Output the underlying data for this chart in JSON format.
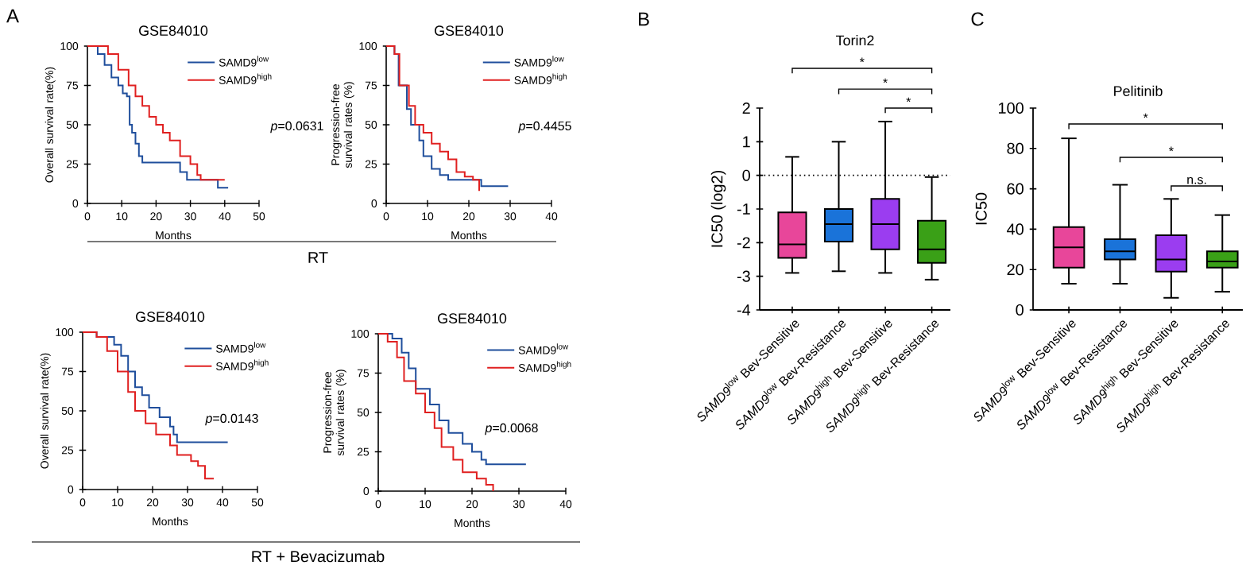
{
  "chart_data": [
    {
      "type": "step",
      "title": "GSE84010",
      "xlabel": "Months",
      "ylabel": "Overall survival rate(%)",
      "xlim": [
        0,
        50
      ],
      "xticks": [
        0,
        10,
        20,
        30,
        40,
        50
      ],
      "ylim": [
        0,
        100
      ],
      "yticks": [
        0,
        25,
        50,
        75,
        100
      ],
      "legend": "top right",
      "annotations": [
        "A",
        "*p*=0.0631",
        "RT"
      ],
      "series": [
        {
          "name": "SAMD9$^{low}$",
          "color": "#1f4e9c",
          "x": [
            0,
            2,
            3,
            5,
            7,
            9,
            10.3,
            11.5,
            12.3,
            13,
            14,
            15,
            16,
            25.4,
            27,
            29,
            38,
            41
          ],
          "values": [
            100,
            100,
            95,
            88,
            80,
            75,
            70,
            68,
            50,
            45,
            38,
            30,
            26,
            26,
            20,
            15,
            10,
            10
          ]
        },
        {
          "name": "SAMD9$^{high}$",
          "color": "#e02020",
          "x": [
            0,
            2,
            6,
            9,
            12,
            14,
            16,
            18,
            20,
            22,
            24,
            27,
            30,
            32,
            33,
            40
          ],
          "values": [
            100,
            100,
            95,
            85,
            75,
            68,
            62,
            55,
            50,
            45,
            40,
            30,
            25,
            18,
            15,
            15
          ]
        }
      ]
    },
    {
      "type": "step",
      "title": "GSE84010",
      "xlabel": "Months",
      "ylabel": "Progression-free survival rates (%)",
      "xlim": [
        0,
        40
      ],
      "xticks": [
        0,
        10,
        20,
        30,
        40
      ],
      "ylim": [
        0,
        100
      ],
      "yticks": [
        0,
        25,
        50,
        75,
        100
      ],
      "legend": "top right",
      "annotations": [
        "*p*=0.4455"
      ],
      "series": [
        {
          "name": "SAMD9$^{low}$",
          "color": "#1f4e9c",
          "x": [
            0,
            2,
            3,
            5,
            6,
            8,
            9,
            11,
            13,
            15,
            23,
            29.5
          ],
          "values": [
            100,
            95,
            75,
            60,
            50,
            40,
            30,
            22,
            18,
            15,
            11,
            11
          ]
        },
        {
          "name": "SAMD9$^{high}$",
          "color": "#e02020",
          "x": [
            0,
            2,
            3.2,
            5.5,
            7,
            9,
            11,
            13,
            15,
            17,
            19,
            21,
            22.5
          ],
          "values": [
            100,
            95,
            75,
            62,
            50,
            45,
            38,
            33,
            28,
            20,
            17,
            15,
            8
          ]
        }
      ]
    },
    {
      "type": "step",
      "title": "GSE84010",
      "xlabel": "Months",
      "ylabel": "Overall survival rate(%)",
      "xlim": [
        0,
        50
      ],
      "xticks": [
        0,
        10,
        20,
        30,
        40,
        50
      ],
      "ylim": [
        0,
        100
      ],
      "yticks": [
        0,
        25,
        50,
        75,
        100
      ],
      "legend": "top right",
      "annotations": [
        "*p*=0.0143",
        "RT + Bevacizumab"
      ],
      "series": [
        {
          "name": "SAMD9$^{low}$",
          "color": "#1f4e9c",
          "x": [
            0,
            4,
            9,
            11,
            13,
            15,
            17,
            19,
            22,
            25,
            26,
            27,
            41.5
          ],
          "values": [
            100,
            97,
            92,
            85,
            75,
            65,
            60,
            52,
            46,
            40,
            35,
            30,
            30
          ]
        },
        {
          "name": "SAMD9$^{high}$",
          "color": "#e02020",
          "x": [
            0,
            4,
            7,
            10,
            13,
            15,
            18,
            21,
            25,
            27,
            31,
            33,
            35,
            37.5
          ],
          "values": [
            100,
            97,
            88,
            75,
            62,
            50,
            42,
            35,
            28,
            22,
            18,
            15,
            7,
            7
          ]
        }
      ]
    },
    {
      "type": "step",
      "title": "GSE84010",
      "xlabel": "Months",
      "ylabel": "Progression-free survival rates (%)",
      "xlim": [
        0,
        40
      ],
      "xticks": [
        0,
        10,
        20,
        30,
        40
      ],
      "ylim": [
        0,
        100
      ],
      "yticks": [
        0,
        25,
        50,
        75,
        100
      ],
      "legend": "top right",
      "annotations": [
        "*p*=0.0068"
      ],
      "series": [
        {
          "name": "SAMD9$^{low}$",
          "color": "#1f4e9c",
          "x": [
            0,
            3,
            5,
            6.5,
            8,
            11,
            13,
            15,
            18,
            20,
            22,
            23,
            31.5
          ],
          "values": [
            100,
            97,
            88,
            78,
            65,
            55,
            45,
            37,
            30,
            25,
            20,
            17,
            17
          ]
        },
        {
          "name": "SAMD9$^{high}$",
          "color": "#e02020",
          "x": [
            0,
            2,
            4,
            5.5,
            8,
            10,
            12,
            13.5,
            16,
            18,
            21,
            23,
            24.5
          ],
          "values": [
            100,
            95,
            85,
            70,
            62,
            50,
            40,
            28,
            20,
            12,
            8,
            4,
            0
          ]
        }
      ]
    },
    {
      "type": "box",
      "title": "Torin2",
      "ylabel": "IC50 (log2)",
      "ylim": [
        -4,
        2
      ],
      "yticks": [
        -4,
        -3,
        -2,
        -1,
        0,
        1,
        2
      ],
      "annotations": [
        "B",
        "*",
        "*",
        "*"
      ],
      "categories": [
        "*SAMD9*$^{low}$ Bev-Sensitive",
        "*SAMD9*$^{low}$ Bev-Resistance",
        "*SAMD9*$^{high}$ Bev-Sensitive",
        "*SAMD9*$^{high}$ Bev-Resistance"
      ],
      "colors": [
        "#e8469a",
        "#1a73d9",
        "#9b3df0",
        "#3aa017"
      ],
      "ref_lines": [
        {
          "axis": "y",
          "value": 0,
          "line_style": "dotted"
        }
      ],
      "boxes": [
        {
          "low": -2.9,
          "q1": -2.45,
          "median": -2.05,
          "q3": -1.1,
          "high": 0.55
        },
        {
          "low": -2.85,
          "q1": -1.97,
          "median": -1.45,
          "q3": -1.0,
          "high": 1.0
        },
        {
          "low": -2.9,
          "q1": -2.2,
          "median": -1.45,
          "q3": -0.7,
          "high": 1.6
        },
        {
          "low": -3.1,
          "q1": -2.6,
          "median": -2.2,
          "q3": -1.35,
          "high": -0.05
        }
      ]
    },
    {
      "type": "box",
      "title": "Pelitinib",
      "ylabel": "IC50",
      "ylim": [
        0,
        100
      ],
      "yticks": [
        0,
        20,
        40,
        60,
        80,
        100
      ],
      "annotations": [
        "C",
        "*",
        "*",
        "n.s."
      ],
      "categories": [
        "*SAMD9*$^{low}$ Bev-Sensitive",
        "*SAMD9*$^{low}$ Bev-Resistance",
        "*SAMD9*$^{high}$ Bev-Sensitive",
        "*SAMD9*$^{high}$ Bev-Resistance"
      ],
      "colors": [
        "#e8469a",
        "#1a73d9",
        "#9b3df0",
        "#3aa017"
      ],
      "boxes": [
        {
          "low": 13,
          "q1": 21,
          "median": 31,
          "q3": 41,
          "high": 85
        },
        {
          "low": 13,
          "q1": 25,
          "median": 29,
          "q3": 35,
          "high": 62
        },
        {
          "low": 6,
          "q1": 19,
          "median": 25,
          "q3": 37,
          "high": 55
        },
        {
          "low": 9,
          "q1": 21,
          "median": 24,
          "q3": 29,
          "high": 47
        }
      ]
    }
  ]
}
